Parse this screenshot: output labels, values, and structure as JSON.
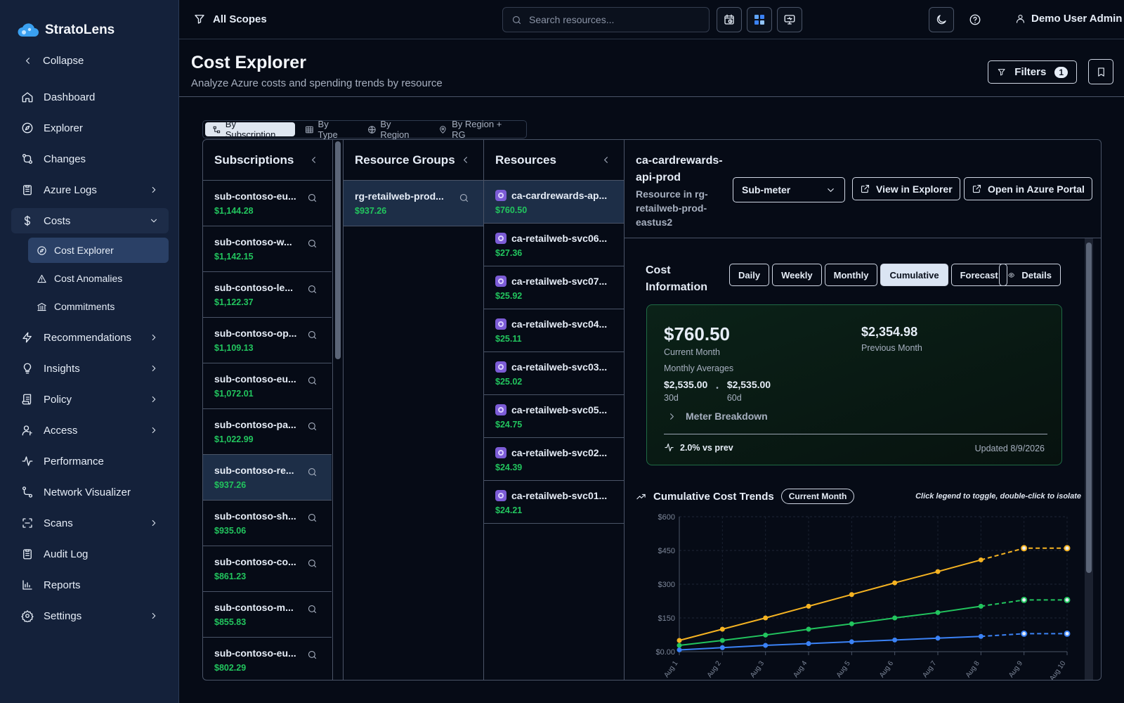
{
  "brand": {
    "name": "StratoLens"
  },
  "sidebar": {
    "collapse": "Collapse",
    "items": [
      {
        "label": "Dashboard",
        "icon": "home-icon"
      },
      {
        "label": "Explorer",
        "icon": "compass-icon"
      },
      {
        "label": "Changes",
        "icon": "git-compare-icon"
      },
      {
        "label": "Azure Logs",
        "icon": "clipboard-icon",
        "chevron": "right"
      },
      {
        "label": "Costs",
        "icon": "dollar-icon",
        "chevron": "down"
      },
      {
        "label": "Recommendations",
        "icon": "lightning-icon",
        "chevron": "right"
      },
      {
        "label": "Insights",
        "icon": "lightbulb-icon",
        "chevron": "right"
      },
      {
        "label": "Policy",
        "icon": "scroll-icon",
        "chevron": "right"
      },
      {
        "label": "Access",
        "icon": "user-key-icon",
        "chevron": "right"
      },
      {
        "label": "Performance",
        "icon": "activity-icon"
      },
      {
        "label": "Network Visualizer",
        "icon": "network-icon"
      },
      {
        "label": "Scans",
        "icon": "scan-icon",
        "chevron": "right"
      },
      {
        "label": "Audit Log",
        "icon": "clipboard-icon"
      },
      {
        "label": "Reports",
        "icon": "bar-chart-icon"
      },
      {
        "label": "Settings",
        "icon": "gear-icon",
        "chevron": "right"
      }
    ],
    "costs_sub": [
      {
        "label": "Cost Explorer",
        "icon": "compass-icon"
      },
      {
        "label": "Cost Anomalies",
        "icon": "warning-icon"
      },
      {
        "label": "Commitments",
        "icon": "bank-icon"
      }
    ]
  },
  "topbar": {
    "scope": "All Scopes",
    "search_placeholder": "Search resources...",
    "user": "Demo User Admin"
  },
  "header": {
    "title": "Cost Explorer",
    "subtitle": "Analyze Azure costs and spending trends by resource",
    "filters": "Filters",
    "filters_count": "1"
  },
  "view_tabs": [
    "By Subscription",
    "By Type",
    "By Region",
    "By Region + RG"
  ],
  "subscriptions": {
    "title": "Subscriptions",
    "rows": [
      {
        "name": "sub-contoso-eu...",
        "cost": "$1,144.28"
      },
      {
        "name": "sub-contoso-w...",
        "cost": "$1,142.15"
      },
      {
        "name": "sub-contoso-le...",
        "cost": "$1,122.37"
      },
      {
        "name": "sub-contoso-op...",
        "cost": "$1,109.13"
      },
      {
        "name": "sub-contoso-eu...",
        "cost": "$1,072.01"
      },
      {
        "name": "sub-contoso-pa...",
        "cost": "$1,022.99"
      },
      {
        "name": "sub-contoso-re...",
        "cost": "$937.26"
      },
      {
        "name": "sub-contoso-sh...",
        "cost": "$935.06"
      },
      {
        "name": "sub-contoso-co...",
        "cost": "$861.23"
      },
      {
        "name": "sub-contoso-m...",
        "cost": "$855.83"
      },
      {
        "name": "sub-contoso-eu...",
        "cost": "$802.29"
      }
    ]
  },
  "resource_groups": {
    "title": "Resource Groups",
    "rows": [
      {
        "name": "rg-retailweb-prod...",
        "cost": "$937.26"
      }
    ]
  },
  "resources": {
    "title": "Resources",
    "rows": [
      {
        "name": "ca-cardrewards-ap...",
        "cost": "$760.50"
      },
      {
        "name": "ca-retailweb-svc06...",
        "cost": "$27.36"
      },
      {
        "name": "ca-retailweb-svc07...",
        "cost": "$25.92"
      },
      {
        "name": "ca-retailweb-svc04...",
        "cost": "$25.11"
      },
      {
        "name": "ca-retailweb-svc03...",
        "cost": "$25.02"
      },
      {
        "name": "ca-retailweb-svc05...",
        "cost": "$24.75"
      },
      {
        "name": "ca-retailweb-svc02...",
        "cost": "$24.39"
      },
      {
        "name": "ca-retailweb-svc01...",
        "cost": "$24.21"
      }
    ]
  },
  "detail": {
    "title": "ca-cardrewards-api-prod",
    "subtitle": "Resource in rg-retailweb-prod-eastus2",
    "meter_select": "Sub-meter",
    "view_in_explorer": "View in Explorer",
    "open_portal": "Open in Azure Portal",
    "cost_info_title": "Cost Information",
    "period_tabs": [
      "Daily",
      "Weekly",
      "Monthly",
      "Cumulative",
      "Forecast"
    ],
    "active_period": "Cumulative",
    "details": "Details",
    "current_amount": "$760.50",
    "current_label": "Current Month",
    "previous_amount": "$2,354.98",
    "previous_label": "Previous Month",
    "avg_label": "Monthly Averages",
    "avg_30": "$2,535.00",
    "avg_30_label": "30d",
    "avg_60": "$2,535.00",
    "avg_60_label": "60d",
    "meter_breakdown": "Meter Breakdown",
    "trend": "2.0% vs prev",
    "updated": "Updated 8/9/2026",
    "chart_title": "Cumulative Cost Trends",
    "chart_pill": "Current Month",
    "chart_hint": "Click legend to toggle, double-click to isolate"
  },
  "chart_data": {
    "type": "line",
    "x": [
      "Aug 1",
      "Aug 2",
      "Aug 3",
      "Aug 4",
      "Aug 5",
      "Aug 6",
      "Aug 7",
      "Aug 8",
      "Aug 9",
      "Aug 10"
    ],
    "y_ticks": [
      "$0.00",
      "$150",
      "$300",
      "$450",
      "$600"
    ],
    "ylim": [
      0,
      600
    ],
    "actual_count": 8,
    "series": [
      {
        "color": "#f5b322",
        "values": [
          50,
          100,
          150,
          202,
          254,
          306,
          356,
          408,
          460,
          460
        ]
      },
      {
        "color": "#22c55e",
        "values": [
          28,
          50,
          74,
          100,
          124,
          150,
          174,
          202,
          230,
          230
        ]
      },
      {
        "color": "#3b82f6",
        "values": [
          8,
          18,
          28,
          36,
          44,
          52,
          60,
          68,
          80,
          80
        ]
      }
    ]
  }
}
